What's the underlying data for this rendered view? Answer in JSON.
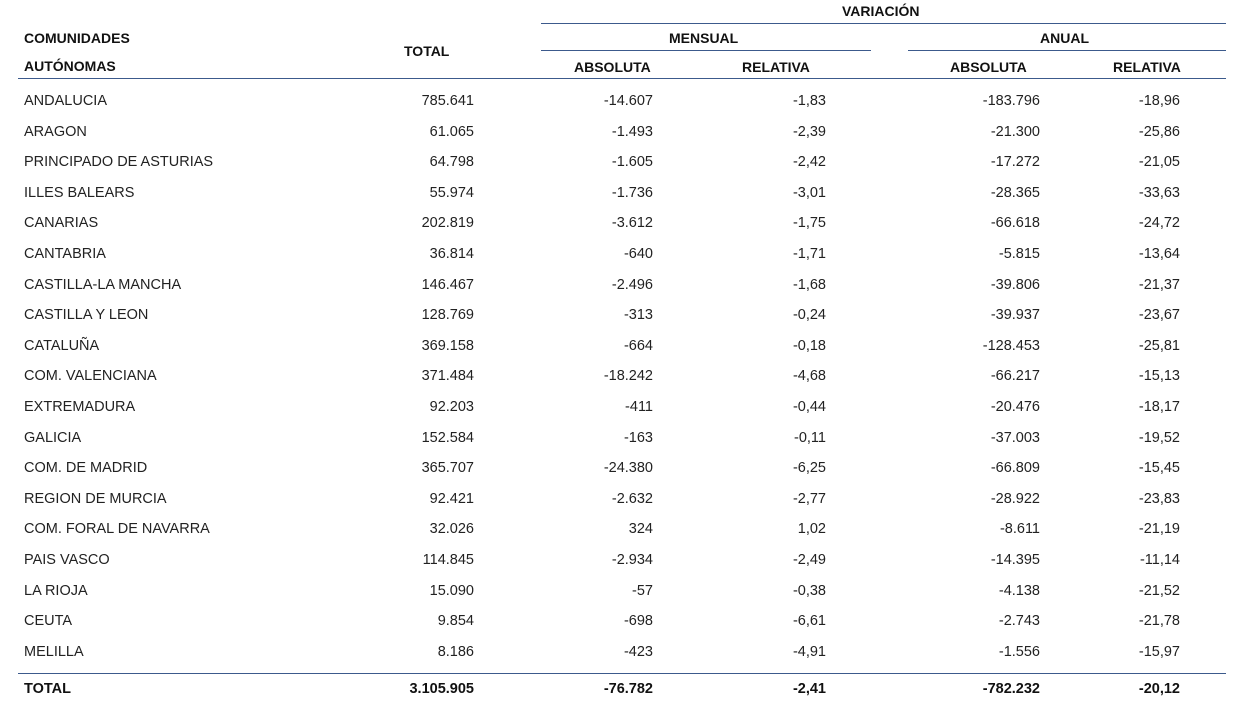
{
  "header": {
    "variacion": "VARIACIÓN",
    "comunidades_line1": "COMUNIDADES",
    "comunidades_line2": "AUTÓNOMAS",
    "total": "TOTAL",
    "mensual": "MENSUAL",
    "anual": "ANUAL",
    "absoluta": "ABSOLUTA",
    "relativa": "RELATIVA"
  },
  "rows": [
    {
      "name": "ANDALUCIA",
      "total": "785.641",
      "mabs": "-14.607",
      "mrel": "-1,83",
      "aabs": "-183.796",
      "arel": "-18,96"
    },
    {
      "name": "ARAGON",
      "total": "61.065",
      "mabs": "-1.493",
      "mrel": "-2,39",
      "aabs": "-21.300",
      "arel": "-25,86"
    },
    {
      "name": "PRINCIPADO DE ASTURIAS",
      "total": "64.798",
      "mabs": "-1.605",
      "mrel": "-2,42",
      "aabs": "-17.272",
      "arel": "-21,05"
    },
    {
      "name": "ILLES BALEARS",
      "total": "55.974",
      "mabs": "-1.736",
      "mrel": "-3,01",
      "aabs": "-28.365",
      "arel": "-33,63"
    },
    {
      "name": "CANARIAS",
      "total": "202.819",
      "mabs": "-3.612",
      "mrel": "-1,75",
      "aabs": "-66.618",
      "arel": "-24,72"
    },
    {
      "name": "CANTABRIA",
      "total": "36.814",
      "mabs": "-640",
      "mrel": "-1,71",
      "aabs": "-5.815",
      "arel": "-13,64"
    },
    {
      "name": "CASTILLA-LA MANCHA",
      "total": "146.467",
      "mabs": "-2.496",
      "mrel": "-1,68",
      "aabs": "-39.806",
      "arel": "-21,37"
    },
    {
      "name": "CASTILLA Y LEON",
      "total": "128.769",
      "mabs": "-313",
      "mrel": "-0,24",
      "aabs": "-39.937",
      "arel": "-23,67"
    },
    {
      "name": "CATALUÑA",
      "total": "369.158",
      "mabs": "-664",
      "mrel": "-0,18",
      "aabs": "-128.453",
      "arel": "-25,81"
    },
    {
      "name": "COM. VALENCIANA",
      "total": "371.484",
      "mabs": "-18.242",
      "mrel": "-4,68",
      "aabs": "-66.217",
      "arel": "-15,13"
    },
    {
      "name": "EXTREMADURA",
      "total": "92.203",
      "mabs": "-411",
      "mrel": "-0,44",
      "aabs": "-20.476",
      "arel": "-18,17"
    },
    {
      "name": "GALICIA",
      "total": "152.584",
      "mabs": "-163",
      "mrel": "-0,11",
      "aabs": "-37.003",
      "arel": "-19,52"
    },
    {
      "name": "COM. DE MADRID",
      "total": "365.707",
      "mabs": "-24.380",
      "mrel": "-6,25",
      "aabs": "-66.809",
      "arel": "-15,45"
    },
    {
      "name": "REGION DE MURCIA",
      "total": "92.421",
      "mabs": "-2.632",
      "mrel": "-2,77",
      "aabs": "-28.922",
      "arel": "-23,83"
    },
    {
      "name": "COM. FORAL DE NAVARRA",
      "total": "32.026",
      "mabs": "324",
      "mrel": "1,02",
      "aabs": "-8.611",
      "arel": "-21,19"
    },
    {
      "name": "PAIS VASCO",
      "total": "114.845",
      "mabs": "-2.934",
      "mrel": "-2,49",
      "aabs": "-14.395",
      "arel": "-11,14"
    },
    {
      "name": "LA RIOJA",
      "total": "15.090",
      "mabs": "-57",
      "mrel": "-0,38",
      "aabs": "-4.138",
      "arel": "-21,52"
    },
    {
      "name": "CEUTA",
      "total": "9.854",
      "mabs": "-698",
      "mrel": "-6,61",
      "aabs": "-2.743",
      "arel": "-21,78"
    },
    {
      "name": "MELILLA",
      "total": "8.186",
      "mabs": "-423",
      "mrel": "-4,91",
      "aabs": "-1.556",
      "arel": "-15,97"
    }
  ],
  "total_row": {
    "name": "TOTAL",
    "total": "3.105.905",
    "mabs": "-76.782",
    "mrel": "-2,41",
    "aabs": "-782.232",
    "arel": "-20,12"
  }
}
